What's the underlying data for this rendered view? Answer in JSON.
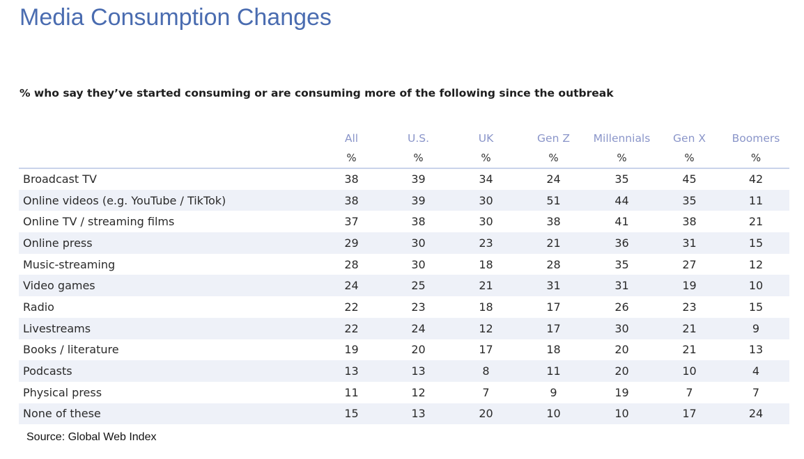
{
  "chart_data": {
    "type": "table",
    "title": "Media Consumption Changes",
    "subtitle": "% who say they’ve started consuming or are consuming more of the following since the outbreak",
    "columns": [
      "All",
      "U.S.",
      "UK",
      "Gen Z",
      "Millennials",
      "Gen X",
      "Boomers"
    ],
    "unit": "%",
    "rows": [
      {
        "label": "Broadcast TV",
        "values": [
          38,
          39,
          34,
          24,
          35,
          45,
          42
        ]
      },
      {
        "label": "Online videos (e.g. YouTube / TikTok)",
        "values": [
          38,
          39,
          30,
          51,
          44,
          35,
          11
        ]
      },
      {
        "label": "Online TV / streaming films",
        "values": [
          37,
          38,
          30,
          38,
          41,
          38,
          21
        ]
      },
      {
        "label": "Online press",
        "values": [
          29,
          30,
          23,
          21,
          36,
          31,
          15
        ]
      },
      {
        "label": "Music-streaming",
        "values": [
          28,
          30,
          18,
          28,
          35,
          27,
          12
        ]
      },
      {
        "label": "Video games",
        "values": [
          24,
          25,
          21,
          31,
          31,
          19,
          10
        ]
      },
      {
        "label": "Radio",
        "values": [
          22,
          23,
          18,
          17,
          26,
          23,
          15
        ]
      },
      {
        "label": "Livestreams",
        "values": [
          22,
          24,
          12,
          17,
          30,
          21,
          9
        ]
      },
      {
        "label": "Books / literature",
        "values": [
          19,
          20,
          17,
          18,
          20,
          21,
          13
        ]
      },
      {
        "label": "Podcasts",
        "values": [
          13,
          13,
          8,
          11,
          20,
          10,
          4
        ]
      },
      {
        "label": "Physical press",
        "values": [
          11,
          12,
          7,
          9,
          19,
          7,
          7
        ]
      },
      {
        "label": "None of these",
        "values": [
          15,
          13,
          20,
          10,
          10,
          17,
          24
        ]
      }
    ],
    "source": "Source: Global Web Index",
    "colors": {
      "title": "#4a6cb0",
      "header": "#8a95c9",
      "stripe": "#eef1f8",
      "rule": "#c9d3ea"
    }
  }
}
